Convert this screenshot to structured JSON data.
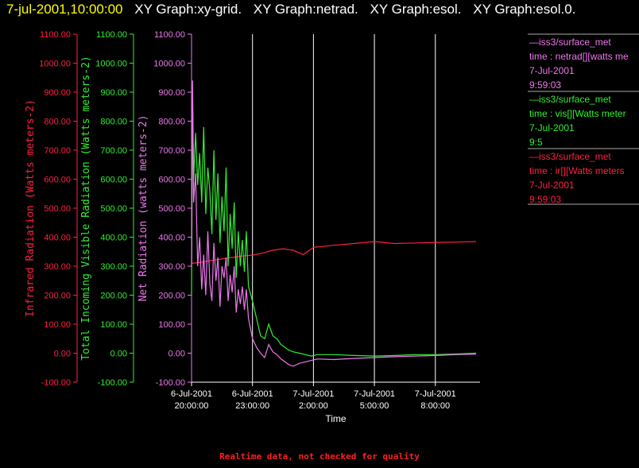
{
  "header": {
    "timestamp": "7-jul-2001,10:00:00",
    "graph_titles": [
      "XY Graph:xy-grid.",
      "XY Graph:netrad.",
      "XY Graph:esol.",
      "XY Graph:esol.0."
    ]
  },
  "footer": {
    "note": "Realtime data, not checked for quality"
  },
  "colors": {
    "infrared": "#ff2040",
    "visible": "#33ee33",
    "net": "#ee77ee",
    "grid": "#ffffff",
    "timestamp": "#ffff00"
  },
  "legend": [
    {
      "source": "—iss3/surface_met",
      "line": "time : netrad[][watts me",
      "date": "7-Jul-2001",
      "time": "9:59:03",
      "color": "#ee77ee"
    },
    {
      "source": "—iss3/surface_met",
      "line": "time : vis[][Watts meter",
      "date": "7-Jul-2001",
      "time": "9:5",
      "color": "#33ee33"
    },
    {
      "source": "—iss3/surface_met",
      "line": "time : ir[][Watts meters",
      "date": "7-Jul-2001",
      "time": "9:59:03",
      "color": "#ff2040"
    }
  ],
  "chart_data": {
    "type": "line",
    "xlabel": "Time",
    "x_ticks": [
      {
        "hours": 0,
        "date": "6-Jul-2001",
        "time": "20:00:00"
      },
      {
        "hours": 3,
        "date": "6-Jul-2001",
        "time": "23:00:00"
      },
      {
        "hours": 6,
        "date": "7-Jul-2001",
        "time": "2:00:00"
      },
      {
        "hours": 9,
        "date": "7-Jul-2001",
        "time": "5:00:00"
      },
      {
        "hours": 12,
        "date": "7-Jul-2001",
        "time": "8:00:00"
      }
    ],
    "xlim_hours": [
      0,
      14.2
    ],
    "ylim": [
      -100,
      1100
    ],
    "y_ticks": [
      "1100.00",
      "1000.00",
      "900.00",
      "800.00",
      "700.00",
      "600.00",
      "500.00",
      "400.00",
      "300.00",
      "200.00",
      "100.00",
      "0.00",
      "-100.00"
    ],
    "axes": [
      {
        "name": "infrared",
        "label": "Infrared Radiation (Watts meters-2)",
        "color": "#ff2040"
      },
      {
        "name": "visible",
        "label": "Total Incoming Visible Radiation (Watts meters-2)",
        "color": "#33ee33"
      },
      {
        "name": "net",
        "label": "Net Radiation (watts meters-2)",
        "color": "#ee77ee"
      }
    ],
    "vertical_grid_hours": [
      3,
      6,
      9,
      12
    ],
    "series": [
      {
        "name": "infrared",
        "color": "#ff2040",
        "x": [
          0,
          0.3,
          0.6,
          1,
          1.5,
          2,
          2.5,
          3,
          3.5,
          4,
          4.5,
          5,
          5.5,
          6,
          7,
          8,
          9,
          10,
          11,
          12,
          13,
          14
        ],
        "y": [
          310,
          312,
          315,
          320,
          325,
          330,
          335,
          338,
          345,
          355,
          360,
          355,
          340,
          365,
          372,
          378,
          385,
          378,
          380,
          382,
          383,
          385
        ]
      },
      {
        "name": "visible",
        "color": "#33ee33",
        "x": [
          0,
          0.05,
          0.1,
          0.2,
          0.3,
          0.4,
          0.5,
          0.6,
          0.7,
          0.8,
          0.9,
          1.0,
          1.1,
          1.2,
          1.3,
          1.4,
          1.5,
          1.6,
          1.7,
          1.8,
          1.9,
          2.0,
          2.1,
          2.2,
          2.3,
          2.4,
          2.5,
          2.6,
          2.7,
          2.8,
          3.0,
          3.2,
          3.4,
          3.6,
          3.8,
          4.0,
          4.2,
          4.4,
          4.6,
          4.8,
          5.0,
          5.3,
          5.6,
          5.9,
          6.2,
          7,
          8,
          9,
          10,
          11,
          12,
          13,
          14
        ],
        "y": [
          200,
          880,
          600,
          760,
          580,
          690,
          520,
          780,
          480,
          640,
          560,
          410,
          700,
          460,
          620,
          380,
          540,
          420,
          640,
          300,
          480,
          360,
          520,
          260,
          420,
          300,
          390,
          280,
          420,
          230,
          180,
          120,
          60,
          50,
          100,
          60,
          50,
          30,
          20,
          10,
          5,
          0,
          -5,
          -10,
          -5,
          -5,
          -8,
          -10,
          -8,
          -5,
          -5,
          -3,
          0
        ]
      },
      {
        "name": "net",
        "color": "#ee77ee",
        "x": [
          0,
          0.05,
          0.1,
          0.2,
          0.3,
          0.4,
          0.5,
          0.6,
          0.7,
          0.8,
          0.9,
          1.0,
          1.1,
          1.2,
          1.3,
          1.4,
          1.5,
          1.6,
          1.7,
          1.8,
          1.9,
          2.0,
          2.1,
          2.2,
          2.3,
          2.4,
          2.5,
          2.6,
          2.7,
          2.8,
          3.0,
          3.2,
          3.4,
          3.6,
          3.8,
          4.0,
          4.2,
          4.4,
          4.6,
          4.8,
          5.0,
          5.3,
          5.6,
          5.9,
          6.2,
          7,
          8,
          9,
          10,
          11,
          12,
          13,
          14
        ],
        "y": [
          300,
          940,
          520,
          620,
          300,
          400,
          220,
          340,
          200,
          420,
          240,
          180,
          380,
          250,
          330,
          160,
          300,
          260,
          330,
          180,
          270,
          210,
          300,
          140,
          220,
          170,
          230,
          150,
          220,
          120,
          50,
          20,
          0,
          -15,
          30,
          5,
          -5,
          -20,
          -30,
          -40,
          -45,
          -35,
          -30,
          -25,
          -20,
          -22,
          -18,
          -15,
          -12,
          -10,
          -8,
          -5,
          -3
        ]
      }
    ]
  }
}
